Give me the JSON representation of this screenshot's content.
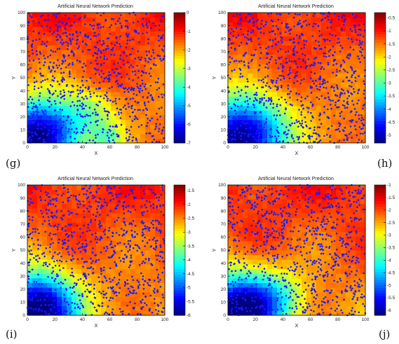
{
  "labels": [
    "(g)",
    "(h)",
    "(i)",
    "(j)"
  ],
  "chart_data": [
    {
      "type": "heatmap",
      "title": "Artificial Neural Network Prediction",
      "xlabel": "X",
      "ylabel": "Y",
      "xlim": [
        0,
        100
      ],
      "ylim": [
        0,
        100
      ],
      "xticks": [
        0,
        20,
        40,
        60,
        80,
        100
      ],
      "yticks": [
        0,
        10,
        20,
        30,
        40,
        50,
        60,
        70,
        80,
        90,
        100
      ],
      "colorbar": {
        "min": -7,
        "max": 0,
        "ticks": [
          0,
          -1,
          -2,
          -3,
          -4,
          -5,
          -6,
          -7
        ]
      },
      "low_regions": [
        [
          10,
          5,
          18,
          14
        ],
        [
          55,
          2,
          8,
          6
        ],
        [
          40,
          20,
          14,
          10
        ]
      ],
      "overlay": "blue scatter points"
    },
    {
      "type": "heatmap",
      "title": "Artificial Neural Network Prediction",
      "xlabel": "X",
      "ylabel": "Y",
      "xlim": [
        0,
        100
      ],
      "ylim": [
        0,
        100
      ],
      "xticks": [
        0,
        20,
        40,
        60,
        80,
        100
      ],
      "yticks": [
        0,
        10,
        20,
        30,
        40,
        50,
        60,
        70,
        80,
        90,
        100
      ],
      "colorbar": {
        "min": -5.3,
        "max": -0.3,
        "ticks": [
          -0.5,
          -1,
          -1.5,
          -2,
          -2.5,
          -3,
          -3.5,
          -4,
          -4.5,
          -5
        ]
      },
      "low_regions": [
        [
          12,
          5,
          20,
          18
        ]
      ],
      "overlay": "blue scatter points"
    },
    {
      "type": "heatmap",
      "title": "Artificial Neural Network Prediction",
      "xlabel": "X",
      "ylabel": "Y",
      "xlim": [
        0,
        100
      ],
      "ylim": [
        0,
        100
      ],
      "xticks": [
        0,
        20,
        40,
        60,
        80,
        100
      ],
      "yticks": [
        0,
        10,
        20,
        30,
        40,
        50,
        60,
        70,
        80,
        90,
        100
      ],
      "colorbar": {
        "min": -6,
        "max": -1.3,
        "ticks": [
          -1.5,
          -2,
          -2.5,
          -3,
          -3.5,
          -4,
          -4.5,
          -5,
          -5.5,
          -6
        ]
      },
      "low_regions": [
        [
          2,
          2,
          18,
          16
        ]
      ],
      "overlay": "blue scatter points"
    },
    {
      "type": "heatmap",
      "title": "Artificial Neural Network Prediction",
      "xlabel": "X",
      "ylabel": "Y",
      "xlim": [
        0,
        100
      ],
      "ylim": [
        0,
        100
      ],
      "xticks": [
        0,
        20,
        40,
        60,
        80,
        100
      ],
      "yticks": [
        0,
        10,
        20,
        30,
        40,
        50,
        60,
        70,
        80,
        90,
        100
      ],
      "colorbar": {
        "min": -6.2,
        "max": -1,
        "ticks": [
          -1,
          -1.5,
          -2,
          -2.5,
          -3,
          -3.5,
          -4,
          -4.5,
          -5,
          -5.5,
          -6
        ]
      },
      "low_regions": [
        [
          8,
          3,
          16,
          14
        ],
        [
          30,
          10,
          18,
          10
        ]
      ],
      "overlay": "blue scatter points"
    }
  ]
}
